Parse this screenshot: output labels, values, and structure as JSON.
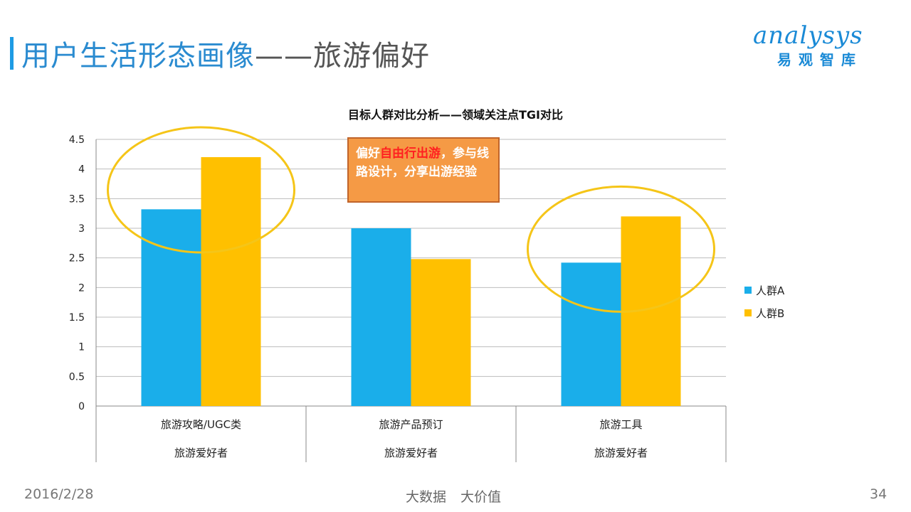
{
  "header": {
    "title_main": "用户生活形态画像",
    "title_sep": "——",
    "title_sub": "旅游偏好"
  },
  "logo": {
    "top": "analysys",
    "bottom": "易观智库"
  },
  "callout": {
    "prefix": "偏好",
    "highlight": "自由行出游",
    "suffix": "，参与线路设计，分享出游经验"
  },
  "footer": {
    "date": "2016/2/28",
    "tagline": "大数据 大价值",
    "page": "34"
  },
  "colors": {
    "series_a": "#1aaeea",
    "series_b": "#ffc000",
    "ellipse": "#f5c518"
  },
  "chart_data": {
    "type": "bar",
    "title": "目标人群对比分析——领域关注点TGI对比",
    "categories": [
      "旅游攻略/UGC类",
      "旅游产品预订",
      "旅游工具"
    ],
    "group_labels": [
      "旅游爱好者",
      "旅游爱好者",
      "旅游爱好者"
    ],
    "series": [
      {
        "name": "人群A",
        "values": [
          3.32,
          3.0,
          2.42
        ]
      },
      {
        "name": "人群B",
        "values": [
          4.2,
          2.48,
          3.2
        ]
      }
    ],
    "ylim": [
      0,
      4.5
    ],
    "yticks": [
      "0",
      "0.5",
      "1",
      "1.5",
      "2",
      "2.5",
      "3",
      "3.5",
      "4",
      "4.5"
    ],
    "grid": true,
    "legend": "right"
  }
}
